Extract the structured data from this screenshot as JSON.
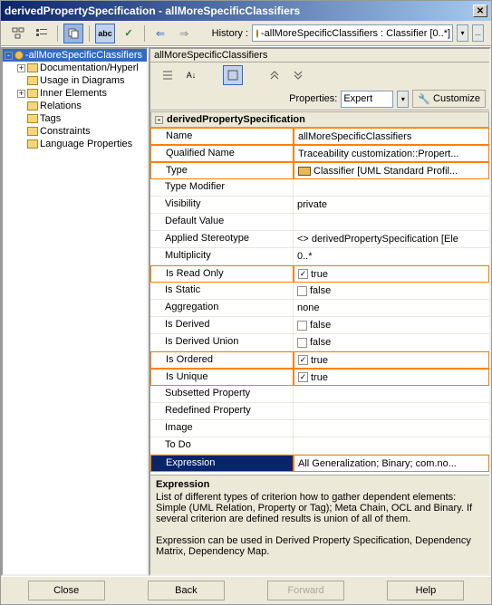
{
  "window": {
    "title": "derivedPropertySpecification - allMoreSpecificClassifiers"
  },
  "toolbar": {
    "abc": "abc",
    "check": "✓"
  },
  "history": {
    "label": "History :",
    "item": "-allMoreSpecificClassifiers : Classifier [0..*] [...",
    "more": "..."
  },
  "tree": [
    {
      "label": "-allMoreSpecificClassifiers",
      "sel": true,
      "exp": "-",
      "icon": "circle",
      "indent": 0
    },
    {
      "label": "Documentation/Hyperl",
      "exp": "+",
      "icon": "folder",
      "indent": 1
    },
    {
      "label": "Usage in Diagrams",
      "exp": "",
      "icon": "folder",
      "indent": 1
    },
    {
      "label": "Inner Elements",
      "exp": "+",
      "icon": "folder",
      "indent": 1
    },
    {
      "label": "Relations",
      "exp": "",
      "icon": "folder",
      "indent": 1
    },
    {
      "label": "Tags",
      "exp": "",
      "icon": "folder",
      "indent": 1
    },
    {
      "label": "Constraints",
      "exp": "",
      "icon": "folder",
      "indent": 1
    },
    {
      "label": "Language Properties",
      "exp": "",
      "icon": "folder",
      "indent": 1
    }
  ],
  "panel": {
    "title": "allMoreSpecificClassifiers",
    "propsLabel": "Properties:",
    "mode": "Expert",
    "customize": "Customize"
  },
  "section": "derivedPropertySpecification",
  "rows": [
    {
      "k": "Name",
      "v": "allMoreSpecificClassifiers",
      "hl": true
    },
    {
      "k": "Qualified Name",
      "v": "Traceability customization::Propert...",
      "hl": true
    },
    {
      "k": "Type",
      "v": "Classifier [UML Standard Profil...",
      "hl": true,
      "icon": "class"
    },
    {
      "k": "Type Modifier",
      "v": ""
    },
    {
      "k": "Visibility",
      "v": "private"
    },
    {
      "k": "Default Value",
      "v": ""
    },
    {
      "k": "Applied Stereotype",
      "v": "derivedPropertySpecification [Ele",
      "st": true
    },
    {
      "k": "Multiplicity",
      "v": "0..*"
    },
    {
      "k": "Is Read Only",
      "v": "true",
      "ck": true,
      "checked": true,
      "hl": true
    },
    {
      "k": "Is Static",
      "v": "false",
      "ck": true,
      "checked": false
    },
    {
      "k": "Aggregation",
      "v": "none"
    },
    {
      "k": "Is Derived",
      "v": "false",
      "ck": true,
      "checked": false
    },
    {
      "k": "Is Derived Union",
      "v": "false",
      "ck": true,
      "checked": false
    },
    {
      "k": "Is Ordered",
      "v": "true",
      "ck": true,
      "checked": true,
      "hl": true
    },
    {
      "k": "Is Unique",
      "v": "true",
      "ck": true,
      "checked": true,
      "hl": true
    },
    {
      "k": "Subsetted Property",
      "v": ""
    },
    {
      "k": "Redefined Property",
      "v": ""
    },
    {
      "k": "Image",
      "v": ""
    },
    {
      "k": "To Do",
      "v": ""
    },
    {
      "k": "Expression",
      "v": "All Generalization; Binary; com.no...",
      "hl": true,
      "sel": true
    }
  ],
  "desc": {
    "h": "Expression",
    "p1": "List of different types of criterion how to gather dependent elements: Simple (UML Relation, Property or Tag); Meta Chain, OCL and Binary. If several criterion are defined results is union of all of them.",
    "p2": "Expression can be used in Derived Property Specification, Dependency Matrix, Dependency Map."
  },
  "footer": {
    "close": "Close",
    "back": "Back",
    "forward": "Forward",
    "help": "Help"
  }
}
